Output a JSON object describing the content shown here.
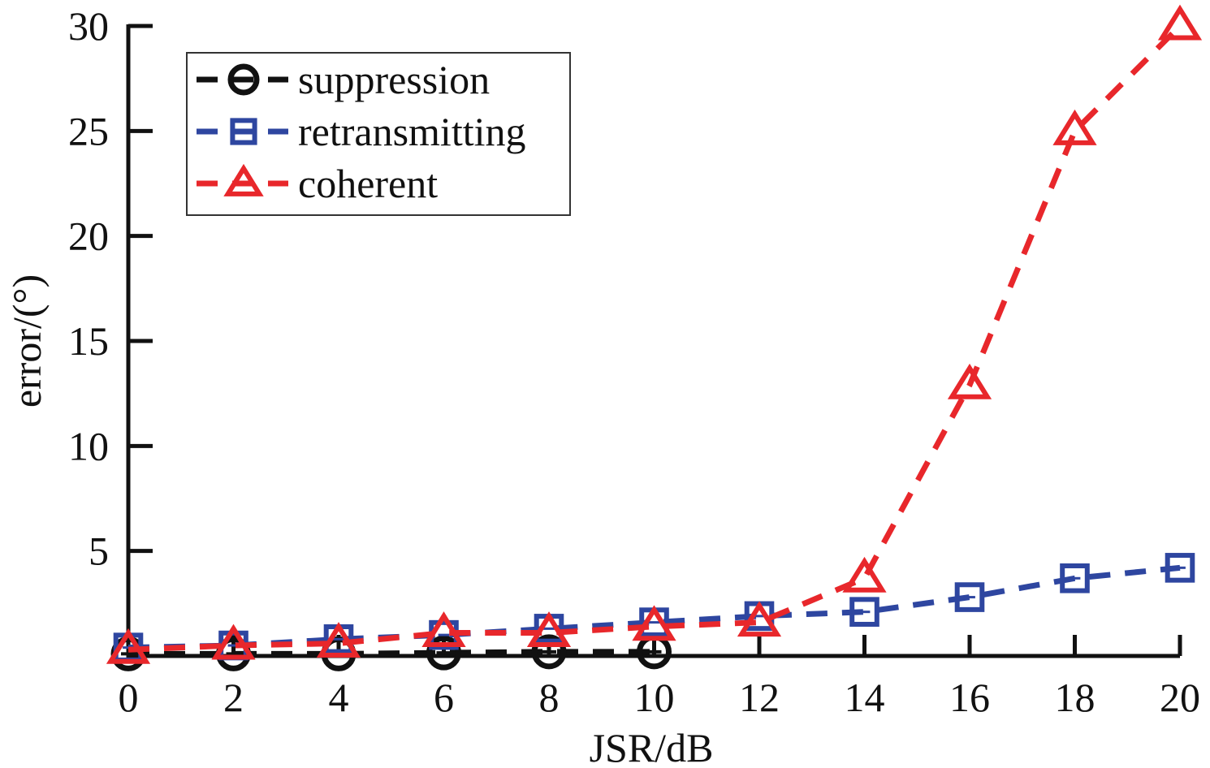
{
  "chart_data": {
    "type": "line",
    "xlabel": "JSR/dB",
    "ylabel": "error/(°)",
    "xlim": [
      0,
      20
    ],
    "ylim": [
      0,
      30
    ],
    "x_ticks": [
      0,
      2,
      4,
      6,
      8,
      10,
      12,
      14,
      16,
      18,
      20
    ],
    "y_ticks": [
      5,
      10,
      15,
      20,
      25,
      30
    ],
    "grid": false,
    "legend_position": "top-left",
    "series": [
      {
        "name": "suppression",
        "color": "#111111",
        "marker": "circle",
        "x": [
          0,
          2,
          4,
          6,
          8,
          10
        ],
        "y": [
          0.1,
          0.1,
          0.1,
          0.15,
          0.2,
          0.2
        ]
      },
      {
        "name": "retransmitting",
        "color": "#2e46a0",
        "marker": "square",
        "x": [
          0,
          2,
          4,
          6,
          8,
          10,
          12,
          14,
          16,
          18,
          20
        ],
        "y": [
          0.4,
          0.5,
          0.8,
          1.0,
          1.3,
          1.6,
          1.9,
          2.1,
          2.8,
          3.7,
          4.2
        ]
      },
      {
        "name": "coherent",
        "color": "#e8272b",
        "marker": "triangle",
        "x": [
          0,
          2,
          4,
          6,
          8,
          10,
          12,
          14,
          16,
          18,
          20
        ],
        "y": [
          0.3,
          0.5,
          0.6,
          1.1,
          1.1,
          1.4,
          1.6,
          3.7,
          12.9,
          25.0,
          30.0
        ]
      }
    ]
  }
}
